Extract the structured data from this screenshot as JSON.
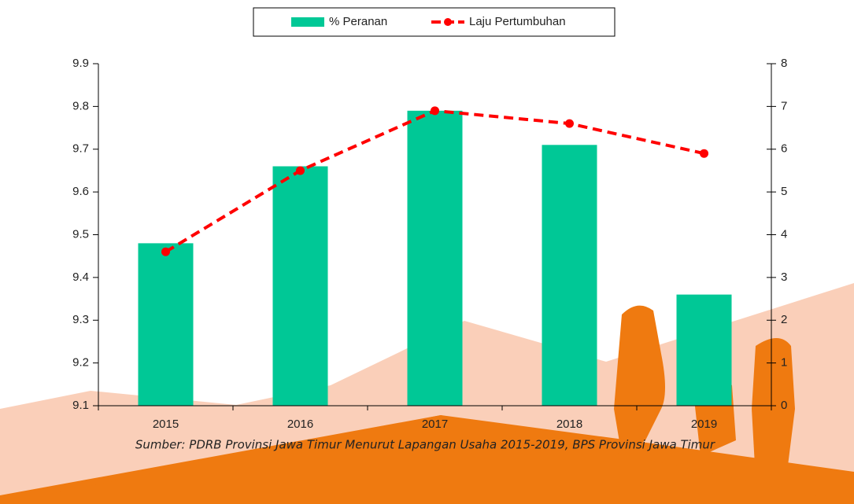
{
  "chart_data": {
    "type": "bar-line",
    "categories": [
      "2015",
      "2016",
      "2017",
      "2018",
      "2019"
    ],
    "series": [
      {
        "name": "% Peranan",
        "color": "#00c896",
        "type": "bar",
        "axis": "y",
        "values": [
          9.48,
          9.66,
          9.79,
          9.71,
          9.36
        ]
      },
      {
        "name": "Laju Pertumbuhan",
        "color": "#ff0000",
        "type": "line",
        "axis": "y2",
        "values": [
          3.6,
          5.5,
          6.9,
          6.6,
          5.9
        ]
      }
    ],
    "ylim": [
      9.1,
      9.9
    ],
    "yticks": [
      9.1,
      9.2,
      9.3,
      9.4,
      9.5,
      9.6,
      9.7,
      9.8,
      9.9
    ],
    "y2lim": [
      0,
      8
    ],
    "y2ticks": [
      0,
      1,
      2,
      3,
      4,
      5,
      6,
      7,
      8
    ],
    "legend": "top",
    "source": "Sumber: PDRB Provinsi Jawa Timur Menurut Lapangan Usaha 2015-2019, BPS Provinsi Jawa Timur"
  }
}
